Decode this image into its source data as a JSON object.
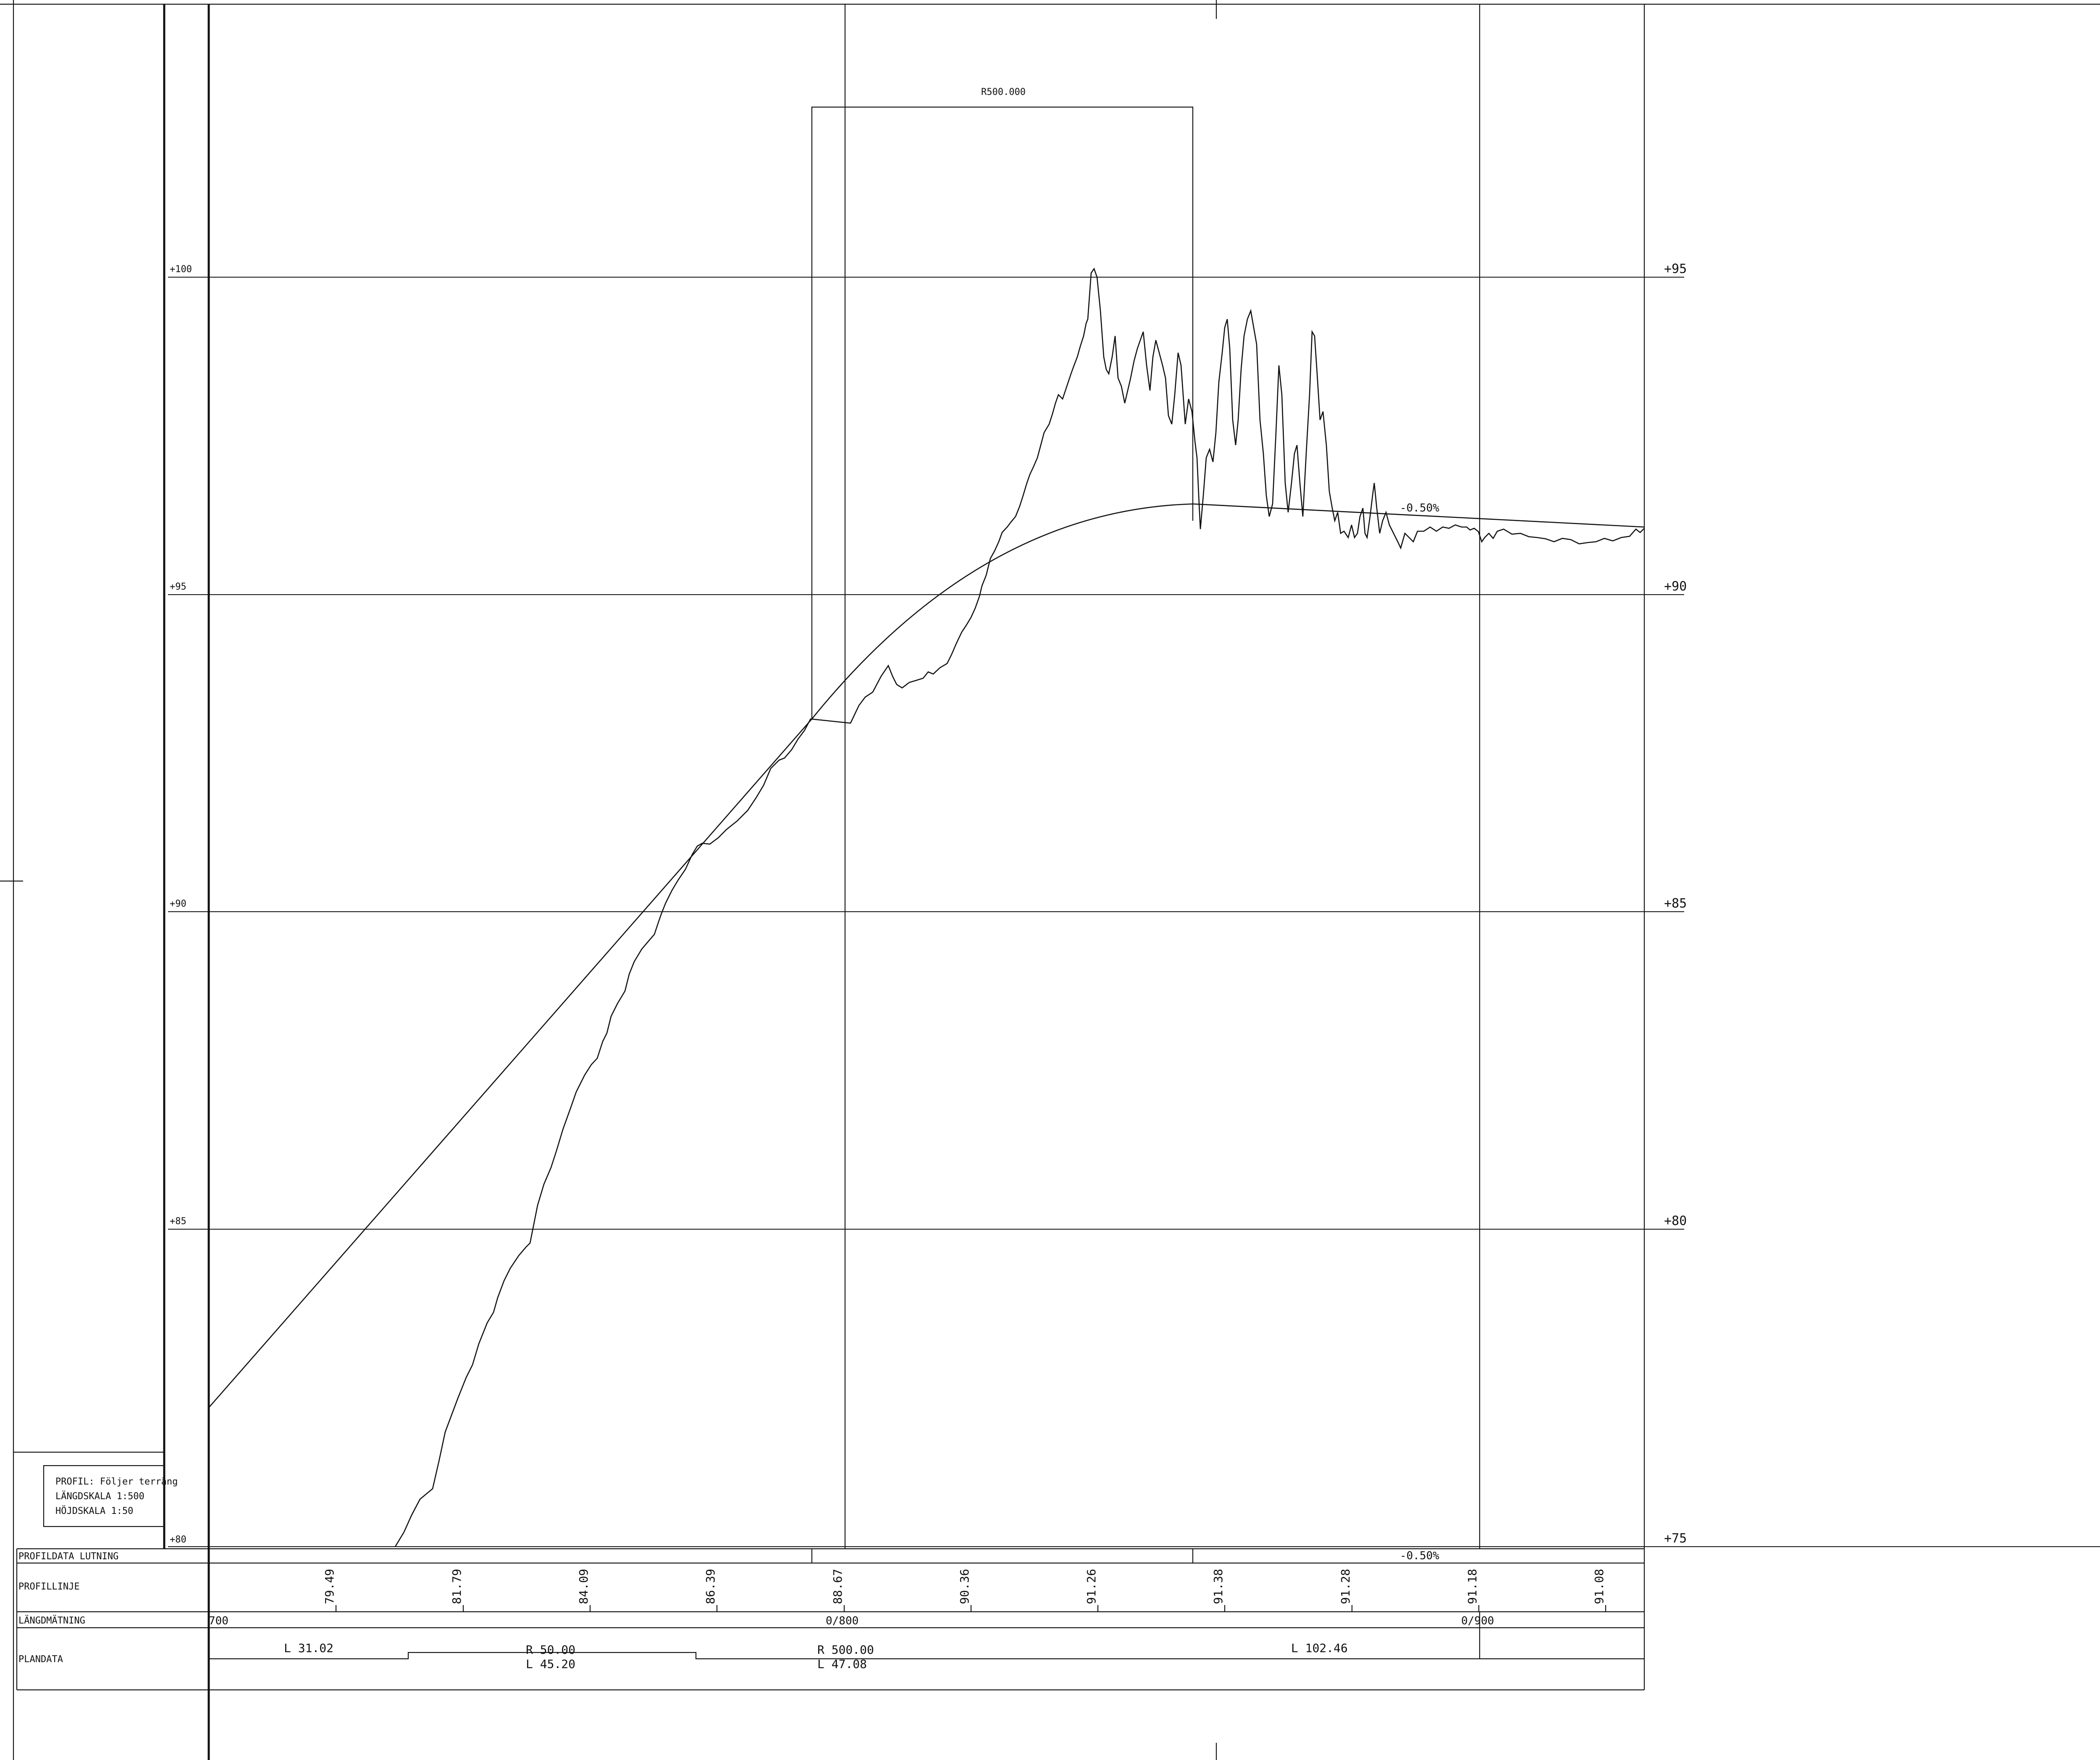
{
  "header": {
    "curve_radius_label": "R500.000",
    "grade_label": "-0.50%"
  },
  "info_box": {
    "line1": "PROFIL: Följer terräng",
    "line2": "LÄNGDSKALA 1:500",
    "line3": "HÖJDSKALA 1:50"
  },
  "left_axis_labels": [
    "+100",
    "+95",
    "+90",
    "+85",
    "+80"
  ],
  "right_axis_labels": [
    "+95",
    "+90",
    "+85",
    "+80",
    "+75"
  ],
  "band": {
    "row_lutning": "PROFILDATA LUTNING",
    "row_profillinje": "PROFILLINJE",
    "row_langdmatning": "LÄNGDMÄTNING",
    "row_plandata": "PLANDATA",
    "lutning_value": "-0.50%",
    "profile_values": [
      "79.49",
      "81.79",
      "84.09",
      "86.39",
      "88.67",
      "90.36",
      "91.26",
      "91.38",
      "91.28",
      "91.18",
      "91.08"
    ],
    "stations": [
      "700",
      "0/800",
      "0/900"
    ],
    "plan_l1": "L  31.02",
    "plan_r1": "R  50.00",
    "plan_l2": "L  45.20",
    "plan_r2": "R  500.00",
    "plan_l3": "L  47.08",
    "plan_l4": "L  102.46"
  }
}
